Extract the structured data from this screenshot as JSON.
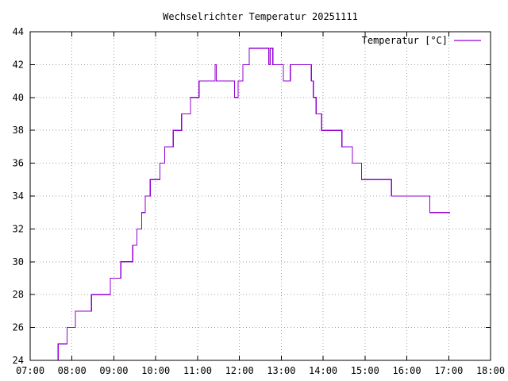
{
  "chart_data": {
    "type": "line",
    "title": "Wechselrichter Temperatur 20251111",
    "xlabel": "",
    "ylabel": "",
    "x_ticks": [
      "07:00",
      "08:00",
      "09:00",
      "10:00",
      "11:00",
      "12:00",
      "13:00",
      "14:00",
      "15:00",
      "16:00",
      "17:00",
      "18:00"
    ],
    "y_ticks": [
      24,
      26,
      28,
      30,
      32,
      34,
      36,
      38,
      40,
      42,
      44
    ],
    "xlim": [
      "07:00",
      "18:00"
    ],
    "ylim": [
      24,
      44
    ],
    "grid": true,
    "legend_position": "top-right",
    "series": [
      {
        "name": "Temperatur [°C]",
        "color": "#9400d3",
        "step": true,
        "x": [
          "07:38",
          "07:40",
          "07:53",
          "08:05",
          "08:28",
          "08:55",
          "09:10",
          "09:27",
          "09:33",
          "09:40",
          "09:45",
          "09:52",
          "10:06",
          "10:13",
          "10:25",
          "10:37",
          "10:50",
          "11:02",
          "11:08",
          "11:25",
          "11:27",
          "11:29",
          "11:53",
          "11:58",
          "12:05",
          "12:14",
          "12:42",
          "12:44",
          "12:48",
          "12:50",
          "13:03",
          "13:13",
          "13:18",
          "13:43",
          "13:46",
          "13:50",
          "13:58",
          "14:27",
          "14:42",
          "14:55",
          "15:38",
          "16:33",
          "17:02"
        ],
        "y": [
          24,
          25,
          26,
          27,
          28,
          29,
          30,
          31,
          32,
          33,
          34,
          35,
          36,
          37,
          38,
          39,
          40,
          41,
          41,
          42,
          41,
          41,
          40,
          41,
          42,
          43,
          42,
          43,
          42,
          42,
          41,
          42,
          42,
          41,
          40,
          39,
          38,
          37,
          36,
          35,
          34,
          33,
          33
        ]
      }
    ]
  }
}
